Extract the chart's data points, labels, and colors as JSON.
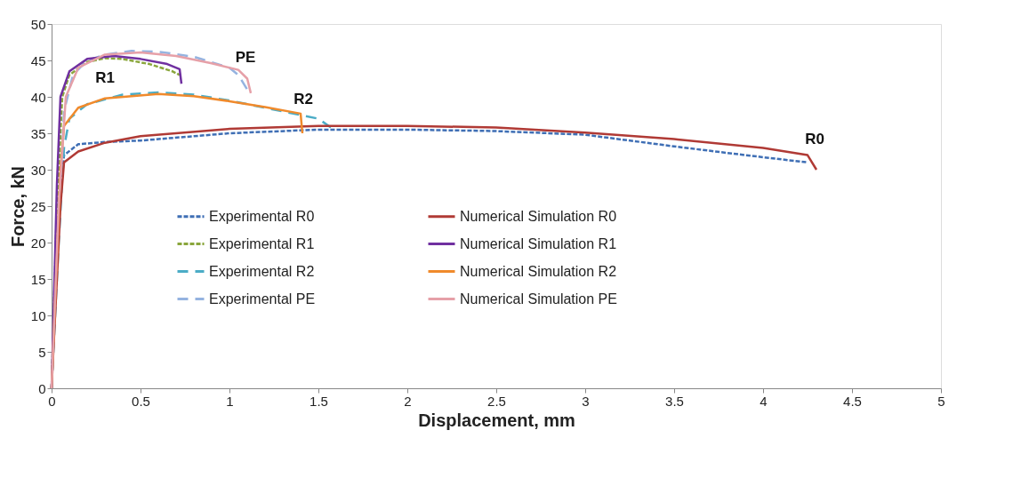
{
  "chart_data": {
    "type": "line",
    "xlabel": "Displacement, mm",
    "ylabel": "Force, kN",
    "xlim": [
      0,
      5
    ],
    "xticks": [
      0,
      0.5,
      1,
      1.5,
      2,
      2.5,
      3,
      3.5,
      4,
      4.5,
      5
    ],
    "ylim": [
      0,
      50
    ],
    "yticks": [
      0,
      5,
      10,
      15,
      20,
      25,
      30,
      35,
      40,
      45,
      50
    ],
    "grid": false,
    "legend": "bottom",
    "marker": "none",
    "series": [
      {
        "name": "Experimental R0",
        "color": "#3f6fb5",
        "line_style": "dashed",
        "x": [
          0,
          0.03,
          0.07,
          0.15,
          0.3,
          0.5,
          1.0,
          1.5,
          2.0,
          2.5,
          3.0,
          3.5,
          3.9,
          4.25
        ],
        "values": [
          0,
          20,
          32,
          33.5,
          33.8,
          34,
          35,
          35.5,
          35.5,
          35.3,
          34.8,
          33.2,
          32,
          31
        ]
      },
      {
        "name": "Experimental R1",
        "color": "#8aa63c",
        "line_style": "dashed",
        "x": [
          0,
          0.03,
          0.06,
          0.1,
          0.2,
          0.3,
          0.4,
          0.55,
          0.68,
          0.72
        ],
        "values": [
          0,
          25,
          40,
          43,
          44.8,
          45.3,
          45.2,
          44.5,
          43.5,
          43
        ]
      },
      {
        "name": "Experimental R2",
        "color": "#4bacc6",
        "line_style": "longdash",
        "x": [
          0,
          0.04,
          0.07,
          0.1,
          0.2,
          0.4,
          0.6,
          0.8,
          1.0,
          1.2,
          1.4,
          1.5,
          1.57
        ],
        "values": [
          0,
          20,
          33,
          37,
          39,
          40.3,
          40.6,
          40.3,
          39.5,
          38.5,
          37.5,
          37,
          35.8
        ]
      },
      {
        "name": "Experimental PE",
        "color": "#95b3e0",
        "line_style": "longdash",
        "x": [
          0,
          0.03,
          0.07,
          0.12,
          0.2,
          0.3,
          0.45,
          0.6,
          0.8,
          1.0,
          1.05,
          1.1
        ],
        "values": [
          0,
          18,
          38,
          43,
          45,
          45.8,
          46.3,
          46.2,
          45.5,
          44,
          43,
          41
        ]
      },
      {
        "name": "Numerical Simulation R0",
        "color": "#b03a35",
        "line_style": "solid",
        "x": [
          0,
          0.05,
          0.07,
          0.15,
          0.3,
          0.5,
          1.0,
          1.5,
          2.0,
          2.5,
          3.0,
          3.5,
          4.0,
          4.25,
          4.3
        ],
        "values": [
          0,
          25,
          31,
          32.5,
          33.7,
          34.6,
          35.6,
          36,
          36,
          35.8,
          35.1,
          34.2,
          33,
          32,
          30
        ]
      },
      {
        "name": "Numerical Simulation R1",
        "color": "#7030a0",
        "line_style": "solid",
        "x": [
          0,
          0.03,
          0.05,
          0.1,
          0.2,
          0.35,
          0.5,
          0.65,
          0.72,
          0.73
        ],
        "values": [
          0,
          28,
          40,
          43.5,
          45.2,
          45.6,
          45.2,
          44.5,
          43.8,
          41.8
        ]
      },
      {
        "name": "Numerical Simulation R2",
        "color": "#f08a2c",
        "line_style": "solid",
        "x": [
          0,
          0.05,
          0.07,
          0.15,
          0.3,
          0.6,
          0.8,
          1.0,
          1.2,
          1.4,
          1.41
        ],
        "values": [
          0,
          30,
          36,
          38.5,
          39.8,
          40.4,
          40.1,
          39.4,
          38.6,
          37.7,
          35
        ]
      },
      {
        "name": "Numerical Simulation PE",
        "color": "#e6a0a8",
        "line_style": "solid",
        "x": [
          0,
          0.04,
          0.08,
          0.15,
          0.3,
          0.5,
          0.7,
          0.9,
          1.05,
          1.1,
          1.12
        ],
        "values": [
          0,
          25,
          40,
          44,
          45.8,
          46.1,
          45.6,
          44.6,
          43.7,
          42.5,
          40.5
        ]
      }
    ],
    "annotations": [
      {
        "text": "R1",
        "x": 0.3,
        "y": 45.3
      },
      {
        "text": "PE",
        "x": 1.05,
        "y": 43.7
      },
      {
        "text": "R2",
        "x": 1.4,
        "y": 37.7
      },
      {
        "text": "R0",
        "x": 4.25,
        "y": 32
      }
    ]
  }
}
